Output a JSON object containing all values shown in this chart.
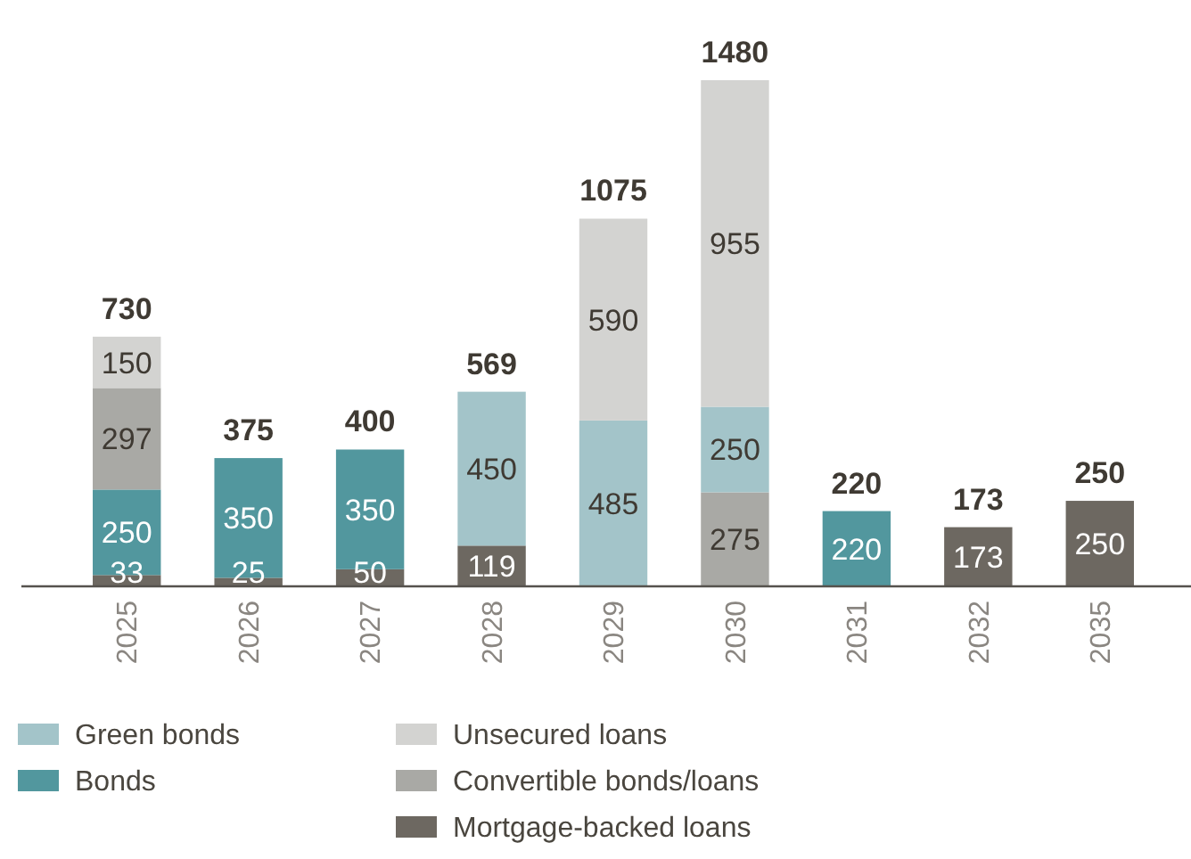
{
  "chart_data": {
    "type": "bar",
    "stacked": true,
    "data_labels": true,
    "legend": "bottom",
    "categories": [
      "2025",
      "2026",
      "2027",
      "2028",
      "2029",
      "2030",
      "2031",
      "2032",
      "2035"
    ],
    "series": [
      {
        "name": "Mortgage-backed loans",
        "color": "#6d6861",
        "values": [
          33,
          25,
          50,
          119,
          null,
          null,
          null,
          173,
          250
        ]
      },
      {
        "name": "Bonds",
        "color": "#52979e",
        "values": [
          250,
          350,
          350,
          null,
          null,
          null,
          220,
          null,
          null
        ]
      },
      {
        "name": "Convertible bonds/loans",
        "color": "#a9a9a5",
        "values": [
          297,
          null,
          null,
          null,
          null,
          275,
          null,
          null,
          null
        ]
      },
      {
        "name": "Green bonds",
        "color": "#a3c4c9",
        "values": [
          null,
          null,
          null,
          450,
          485,
          250,
          null,
          null,
          null
        ]
      },
      {
        "name": "Unsecured loans",
        "color": "#d3d3d1",
        "values": [
          150,
          null,
          null,
          null,
          590,
          955,
          null,
          null,
          null
        ]
      }
    ],
    "totals": [
      "730",
      "375",
      "400",
      "569",
      "1075",
      "1480",
      "220",
      "173",
      "250"
    ]
  }
}
